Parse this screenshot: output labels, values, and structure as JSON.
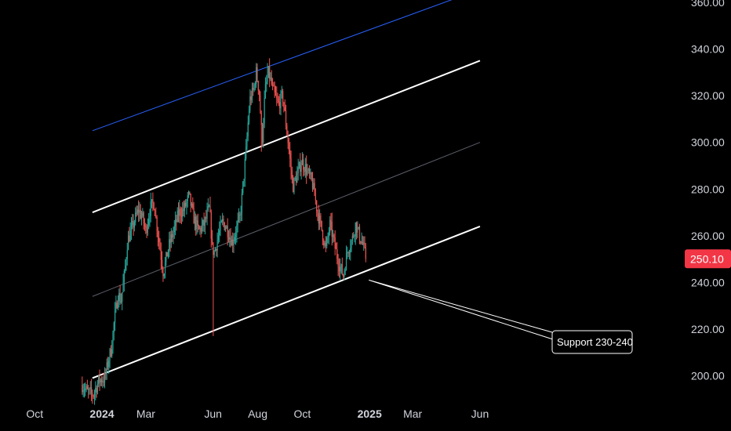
{
  "colors": {
    "background": "#000000",
    "up_candle": "#26a69a",
    "down_candle": "#ef5350",
    "channel_line": "#ffffff",
    "channel_mid": "#5d606b",
    "upper_trend": "#2962ff",
    "price_tag": "#f23645",
    "axis_text": "#d1d4dc"
  },
  "chart_data": {
    "type": "candlestick",
    "symbol_last_price": "250.10",
    "y_axis": {
      "ticks": [
        "200.00",
        "220.00",
        "240.00",
        "260.00",
        "280.00",
        "300.00",
        "320.00",
        "340.00",
        "360.00"
      ],
      "range": [
        190,
        362
      ]
    },
    "x_axis": {
      "ticks": [
        {
          "label": "Oct",
          "date": "2023-10-01",
          "bold": false
        },
        {
          "label": "2024",
          "date": "2024-01-01",
          "bold": true
        },
        {
          "label": "Mar",
          "date": "2024-03-01",
          "bold": false
        },
        {
          "label": "Jun",
          "date": "2024-06-01",
          "bold": false
        },
        {
          "label": "Aug",
          "date": "2024-08-01",
          "bold": false
        },
        {
          "label": "Oct",
          "date": "2024-10-01",
          "bold": false
        },
        {
          "label": "2025",
          "date": "2025-01-01",
          "bold": true
        },
        {
          "label": "Mar",
          "date": "2025-03-01",
          "bold": false
        },
        {
          "label": "Jun",
          "date": "2025-06-01",
          "bold": false
        }
      ]
    },
    "price_path": [
      [
        "2023-12-05",
        196
      ],
      [
        "2023-12-12",
        193
      ],
      [
        "2023-12-20",
        192
      ],
      [
        "2023-12-28",
        198
      ],
      [
        "2024-01-05",
        199
      ],
      [
        "2024-01-10",
        207
      ],
      [
        "2024-01-14",
        212
      ],
      [
        "2024-01-18",
        224
      ],
      [
        "2024-01-23",
        235
      ],
      [
        "2024-01-27",
        232
      ],
      [
        "2024-02-01",
        244
      ],
      [
        "2024-02-05",
        258
      ],
      [
        "2024-02-10",
        262
      ],
      [
        "2024-02-15",
        267
      ],
      [
        "2024-02-20",
        271
      ],
      [
        "2024-02-25",
        268
      ],
      [
        "2024-03-01",
        262
      ],
      [
        "2024-03-07",
        272
      ],
      [
        "2024-03-12",
        274
      ],
      [
        "2024-03-18",
        260
      ],
      [
        "2024-03-25",
        244
      ],
      [
        "2024-04-01",
        255
      ],
      [
        "2024-04-08",
        262
      ],
      [
        "2024-04-15",
        270
      ],
      [
        "2024-04-22",
        271
      ],
      [
        "2024-04-29",
        277
      ],
      [
        "2024-05-05",
        268
      ],
      [
        "2024-05-12",
        262
      ],
      [
        "2024-05-20",
        265
      ],
      [
        "2024-05-27",
        272
      ],
      [
        "2024-05-31",
        254
      ],
      [
        "2024-06-03",
        253
      ],
      [
        "2024-06-08",
        260
      ],
      [
        "2024-06-14",
        266
      ],
      [
        "2024-06-20",
        263
      ],
      [
        "2024-06-27",
        257
      ],
      [
        "2024-07-02",
        262
      ],
      [
        "2024-07-08",
        268
      ],
      [
        "2024-07-12",
        282
      ],
      [
        "2024-07-16",
        296
      ],
      [
        "2024-07-21",
        318
      ],
      [
        "2024-07-26",
        322
      ],
      [
        "2024-07-30",
        330
      ],
      [
        "2024-08-03",
        322
      ],
      [
        "2024-08-07",
        300
      ],
      [
        "2024-08-11",
        322
      ],
      [
        "2024-08-16",
        330
      ],
      [
        "2024-08-22",
        322
      ],
      [
        "2024-08-29",
        316
      ],
      [
        "2024-09-04",
        320
      ],
      [
        "2024-09-08",
        310
      ],
      [
        "2024-09-13",
        296
      ],
      [
        "2024-09-18",
        281
      ],
      [
        "2024-09-24",
        286
      ],
      [
        "2024-09-30",
        292
      ],
      [
        "2024-10-07",
        288
      ],
      [
        "2024-10-15",
        282
      ],
      [
        "2024-10-22",
        270
      ],
      [
        "2024-10-28",
        262
      ],
      [
        "2024-11-02",
        254
      ],
      [
        "2024-11-08",
        265
      ],
      [
        "2024-11-14",
        256
      ],
      [
        "2024-11-20",
        248
      ],
      [
        "2024-11-26",
        243
      ],
      [
        "2024-12-02",
        254
      ],
      [
        "2024-12-08",
        258
      ],
      [
        "2024-12-13",
        265
      ],
      [
        "2024-12-18",
        260
      ],
      [
        "2024-12-23",
        256
      ],
      [
        "2024-12-27",
        250.1
      ]
    ],
    "lines": [
      {
        "name": "channel-upper",
        "from": [
          "2023-12-19",
          270
        ],
        "to": [
          "2025-06-01",
          335
        ],
        "color": "#ffffff"
      },
      {
        "name": "channel-lower",
        "from": [
          "2023-12-19",
          199
        ],
        "to": [
          "2025-06-01",
          264
        ],
        "color": "#ffffff"
      },
      {
        "name": "channel-mid",
        "from": [
          "2023-12-19",
          234
        ],
        "to": [
          "2025-06-01",
          300
        ],
        "color": "#5d606b"
      },
      {
        "name": "upper-trend",
        "from": [
          "2023-12-19",
          305
        ],
        "to": [
          "2025-05-01",
          362
        ],
        "color": "#2962ff"
      }
    ],
    "annotation": {
      "text": "Support 230-240",
      "anchor": [
        "2024-12-31",
        241
      ]
    }
  }
}
